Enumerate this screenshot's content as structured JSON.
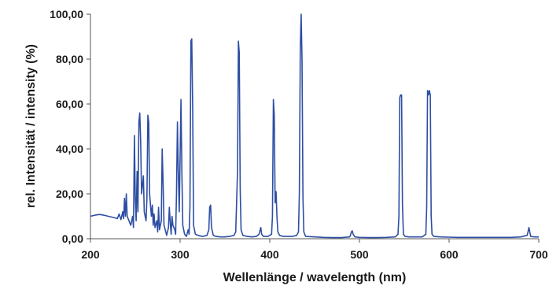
{
  "chart_data": {
    "type": "line",
    "title": "",
    "xlabel": "Wellenlänge / wavelength (nm)",
    "ylabel": "rel. Intensität / intensity (%)",
    "xlim": [
      200,
      700
    ],
    "ylim": [
      0,
      100
    ],
    "grid": false,
    "legend": "none",
    "colors": {
      "line": "#2e4ea3",
      "axis": "#555555",
      "text": "#1a1a1a"
    },
    "x_ticks": [
      {
        "value": 200,
        "label": "200"
      },
      {
        "value": 300,
        "label": "300"
      },
      {
        "value": 400,
        "label": "400"
      },
      {
        "value": 500,
        "label": "500"
      },
      {
        "value": 600,
        "label": "600"
      },
      {
        "value": 700,
        "label": "700"
      }
    ],
    "y_ticks": [
      {
        "value": 0,
        "label": "0,00"
      },
      {
        "value": 20,
        "label": "20,00"
      },
      {
        "value": 40,
        "label": "40,00"
      },
      {
        "value": 60,
        "label": "60,00"
      },
      {
        "value": 80,
        "label": "80,00"
      },
      {
        "value": 100,
        "label": "100,00"
      }
    ],
    "series": [
      {
        "points": [
          [
            200,
            10
          ],
          [
            205,
            10.5
          ],
          [
            210,
            10.8
          ],
          [
            215,
            10.5
          ],
          [
            220,
            10
          ],
          [
            225,
            9.5
          ],
          [
            230,
            9
          ],
          [
            232,
            11
          ],
          [
            234,
            8.5
          ],
          [
            236,
            12
          ],
          [
            237,
            9
          ],
          [
            238,
            18
          ],
          [
            239,
            10
          ],
          [
            240,
            20
          ],
          [
            241,
            10
          ],
          [
            243,
            8
          ],
          [
            245,
            6
          ],
          [
            247,
            10
          ],
          [
            248,
            5
          ],
          [
            249,
            46
          ],
          [
            250,
            18
          ],
          [
            251,
            8
          ],
          [
            252,
            30
          ],
          [
            253,
            12
          ],
          [
            254,
            52
          ],
          [
            255,
            56
          ],
          [
            256,
            44
          ],
          [
            257,
            20
          ],
          [
            259,
            28
          ],
          [
            260,
            12
          ],
          [
            262,
            8
          ],
          [
            263,
            18
          ],
          [
            264,
            55
          ],
          [
            265,
            52
          ],
          [
            266,
            20
          ],
          [
            268,
            10
          ],
          [
            269,
            15
          ],
          [
            270,
            6
          ],
          [
            271,
            11
          ],
          [
            272,
            5
          ],
          [
            274,
            8
          ],
          [
            275,
            3
          ],
          [
            276,
            14
          ],
          [
            277,
            4
          ],
          [
            279,
            8
          ],
          [
            280,
            40
          ],
          [
            281,
            26
          ],
          [
            282,
            6
          ],
          [
            284,
            3
          ],
          [
            285,
            1.5
          ],
          [
            287,
            5
          ],
          [
            288,
            14
          ],
          [
            289,
            7
          ],
          [
            290,
            2
          ],
          [
            291,
            10
          ],
          [
            292,
            6
          ],
          [
            294,
            4
          ],
          [
            295,
            2
          ],
          [
            296,
            20
          ],
          [
            297,
            52
          ],
          [
            298,
            30
          ],
          [
            299,
            12
          ],
          [
            301,
            62
          ],
          [
            302,
            28
          ],
          [
            303,
            6
          ],
          [
            305,
            2
          ],
          [
            307,
            1
          ],
          [
            309,
            4
          ],
          [
            310,
            2
          ],
          [
            311,
            14
          ],
          [
            312,
            88
          ],
          [
            313,
            89
          ],
          [
            314,
            58
          ],
          [
            315,
            6
          ],
          [
            317,
            2
          ],
          [
            320,
            1.5
          ],
          [
            325,
            1
          ],
          [
            330,
            1.5
          ],
          [
            332,
            4
          ],
          [
            333,
            14
          ],
          [
            334,
            15
          ],
          [
            335,
            5
          ],
          [
            337,
            1.5
          ],
          [
            340,
            1
          ],
          [
            345,
            0.8
          ],
          [
            350,
            0.8
          ],
          [
            355,
            1
          ],
          [
            360,
            1.5
          ],
          [
            362,
            3
          ],
          [
            364,
            30
          ],
          [
            365,
            88
          ],
          [
            366,
            83
          ],
          [
            367,
            22
          ],
          [
            368,
            4
          ],
          [
            370,
            1.5
          ],
          [
            375,
            1
          ],
          [
            380,
            0.8
          ],
          [
            385,
            1
          ],
          [
            388,
            2
          ],
          [
            390,
            5
          ],
          [
            391,
            2
          ],
          [
            393,
            1
          ],
          [
            398,
            1
          ],
          [
            402,
            2
          ],
          [
            403,
            10
          ],
          [
            404,
            62
          ],
          [
            405,
            55
          ],
          [
            406,
            16
          ],
          [
            407,
            21
          ],
          [
            408,
            10
          ],
          [
            409,
            3
          ],
          [
            411,
            1.5
          ],
          [
            415,
            1
          ],
          [
            420,
            1
          ],
          [
            425,
            1
          ],
          [
            430,
            1.5
          ],
          [
            432,
            3
          ],
          [
            433,
            20
          ],
          [
            434,
            85
          ],
          [
            435,
            100
          ],
          [
            436,
            80
          ],
          [
            437,
            18
          ],
          [
            438,
            3
          ],
          [
            440,
            1
          ],
          [
            450,
            0.8
          ],
          [
            460,
            0.6
          ],
          [
            470,
            0.5
          ],
          [
            480,
            0.5
          ],
          [
            489,
            0.8
          ],
          [
            490,
            1.5
          ],
          [
            491,
            3
          ],
          [
            492,
            3.5
          ],
          [
            493,
            2
          ],
          [
            495,
            0.8
          ],
          [
            500,
            0.6
          ],
          [
            510,
            0.5
          ],
          [
            520,
            0.5
          ],
          [
            530,
            0.6
          ],
          [
            540,
            0.8
          ],
          [
            543,
            2
          ],
          [
            544,
            10
          ],
          [
            545,
            63
          ],
          [
            546,
            64
          ],
          [
            547,
            64
          ],
          [
            548,
            15
          ],
          [
            549,
            2
          ],
          [
            551,
            1
          ],
          [
            555,
            0.8
          ],
          [
            560,
            0.8
          ],
          [
            570,
            0.8
          ],
          [
            574,
            2
          ],
          [
            575,
            14
          ],
          [
            576,
            66
          ],
          [
            577,
            64
          ],
          [
            578,
            66
          ],
          [
            579,
            64
          ],
          [
            580,
            10
          ],
          [
            581,
            2
          ],
          [
            583,
            1
          ],
          [
            590,
            0.8
          ],
          [
            600,
            0.7
          ],
          [
            610,
            0.6
          ],
          [
            620,
            0.6
          ],
          [
            630,
            0.6
          ],
          [
            640,
            0.6
          ],
          [
            650,
            0.6
          ],
          [
            660,
            0.6
          ],
          [
            670,
            0.6
          ],
          [
            680,
            0.8
          ],
          [
            687,
            1.5
          ],
          [
            688,
            3
          ],
          [
            689,
            5
          ],
          [
            690,
            3
          ],
          [
            691,
            1
          ],
          [
            695,
            0.8
          ],
          [
            700,
            0.8
          ]
        ]
      }
    ]
  }
}
